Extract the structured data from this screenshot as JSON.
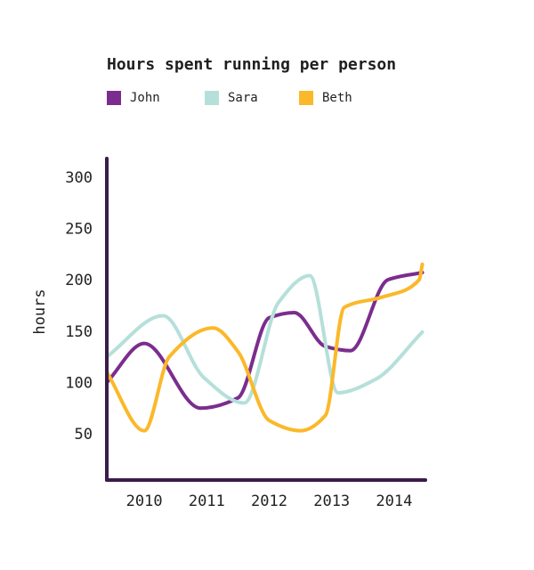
{
  "chart_data": {
    "type": "line",
    "title": "Hours spent running per person",
    "xlabel": "",
    "ylabel": "hours",
    "xlim": [
      2009.4,
      2014.5
    ],
    "ylim": [
      5,
      318
    ],
    "x_ticks": [
      "2010",
      "2011",
      "2012",
      "2013",
      "2014"
    ],
    "y_ticks": [
      "50",
      "100",
      "150",
      "200",
      "250",
      "300"
    ],
    "grid": false,
    "legend_position": "top-left",
    "series": [
      {
        "name": "John",
        "color": "#7b2d8e",
        "x": [
          2009.4,
          2010.0,
          2010.9,
          2011.5,
          2012.0,
          2012.4,
          2012.9,
          2013.3,
          2013.9,
          2014.45
        ],
        "y": [
          100,
          138,
          75,
          85,
          163,
          168,
          135,
          131,
          200,
          207
        ]
      },
      {
        "name": "Sara",
        "color": "#b5e0da",
        "x": [
          2009.4,
          2010.3,
          2010.95,
          2011.6,
          2012.15,
          2012.65,
          2013.1,
          2013.7,
          2014.45
        ],
        "y": [
          125,
          165,
          105,
          80,
          178,
          204,
          90,
          103,
          149
        ]
      },
      {
        "name": "Beth",
        "color": "#fbb829",
        "x": [
          2009.4,
          2010.0,
          2010.4,
          2011.1,
          2011.5,
          2012.0,
          2012.5,
          2012.9,
          2013.2,
          2013.8,
          2014.4,
          2014.45
        ],
        "y": [
          110,
          53,
          125,
          153,
          130,
          63,
          53,
          68,
          173,
          183,
          200,
          215
        ]
      }
    ]
  }
}
